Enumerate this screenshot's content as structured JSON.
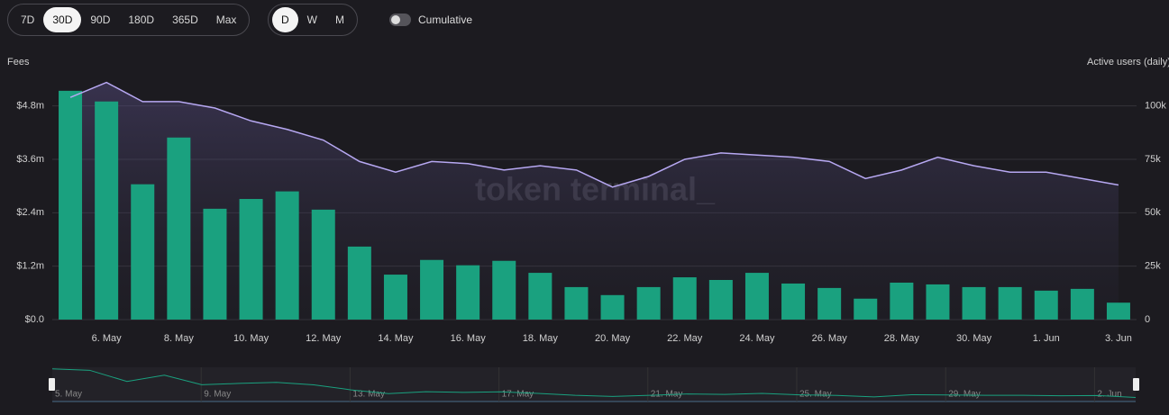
{
  "controls": {
    "ranges": [
      "7D",
      "30D",
      "90D",
      "180D",
      "365D",
      "Max"
    ],
    "selected_range": "30D",
    "intervals": [
      "D",
      "W",
      "M"
    ],
    "selected_interval": "D",
    "toggle": "Cumulative"
  },
  "watermark": "token terminal_",
  "navigator": {
    "labels": [
      "5. May",
      "9. May",
      "13. May",
      "17. May",
      "21. May",
      "25. May",
      "29. May",
      "2. Jun"
    ]
  },
  "chart_data": {
    "type": "bar",
    "y_label": "Fees",
    "y2_label": "Active users (daily)",
    "categories": [
      null,
      "6. May",
      null,
      "8. May",
      null,
      "10. May",
      null,
      "12. May",
      null,
      "14. May",
      null,
      "16. May",
      null,
      "18. May",
      null,
      "20. May",
      null,
      "22. May",
      null,
      "24. May",
      null,
      "26. May",
      null,
      "28. May",
      null,
      "30. May",
      null,
      "1. Jun",
      null,
      "3. Jun"
    ],
    "series": [
      {
        "name": "Fees",
        "type": "bar",
        "color": "#1aa17f",
        "values": [
          5.14,
          4.9,
          3.04,
          4.09,
          2.49,
          2.71,
          2.88,
          2.47,
          1.64,
          1.01,
          1.34,
          1.22,
          1.32,
          1.05,
          0.73,
          0.55,
          0.73,
          0.95,
          0.89,
          1.05,
          0.81,
          0.71,
          0.47,
          0.83,
          0.79,
          0.73,
          0.73,
          0.65,
          0.69,
          0.38
        ]
      },
      {
        "name": "Active users (daily)",
        "type": "area",
        "axis": "y2",
        "color": "#b7a8f2",
        "values": [
          104,
          111,
          102,
          102,
          99,
          93,
          89,
          84,
          74,
          69,
          74,
          73,
          70,
          72,
          70,
          62,
          67,
          75,
          78,
          77,
          76,
          74,
          66,
          70,
          76,
          72,
          69,
          69,
          66,
          63
        ]
      }
    ],
    "ylim": [
      0,
      5.4
    ],
    "yticks": [
      {
        "value": 0,
        "label": "$0.0"
      },
      {
        "value": 1.2,
        "label": "$1.2m"
      },
      {
        "value": 2.4,
        "label": "$2.4m"
      },
      {
        "value": 3.6,
        "label": "$3.6m"
      },
      {
        "value": 4.8,
        "label": "$4.8m"
      }
    ],
    "y2lim": [
      0,
      112.5
    ],
    "y2ticks": [
      0,
      {
        "value": 25,
        "label": "25k"
      },
      {
        "value": 50,
        "label": "50k"
      },
      {
        "value": 75,
        "label": "75k"
      },
      {
        "value": 100,
        "label": "100k"
      }
    ],
    "grid": true
  }
}
